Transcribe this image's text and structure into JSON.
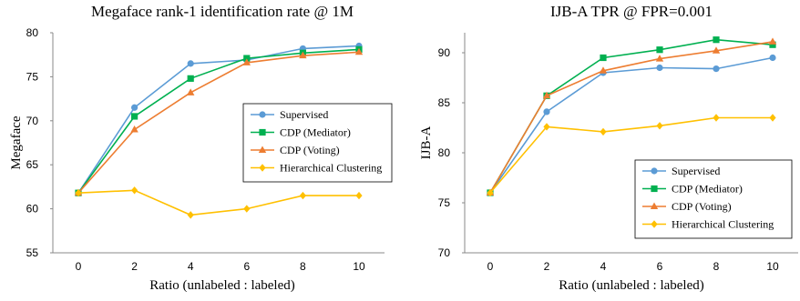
{
  "chart_data": [
    {
      "type": "line",
      "title": "Megaface rank-1 identification rate @ 1M",
      "xlabel": "Ratio (unlabeled : labeled)",
      "ylabel": "Megaface",
      "x": [
        0,
        2,
        4,
        6,
        8,
        10
      ],
      "xticks": [
        "0",
        "2",
        "4",
        "6",
        "8",
        "10"
      ],
      "yticks": [
        "55",
        "60",
        "65",
        "70",
        "75",
        "80"
      ],
      "ylim": [
        55,
        80
      ],
      "grid": false,
      "legend_position": "right-middle",
      "series": [
        {
          "name": "Supervised",
          "color": "#5B9BD5",
          "marker": "circle",
          "values": [
            61.8,
            71.5,
            76.5,
            76.9,
            78.2,
            78.5
          ]
        },
        {
          "name": "CDP (Mediator)",
          "color": "#00B050",
          "marker": "square",
          "values": [
            61.8,
            70.5,
            74.8,
            77.1,
            77.7,
            78.1
          ]
        },
        {
          "name": "CDP (Voting)",
          "color": "#ED7D31",
          "marker": "triangle",
          "values": [
            61.8,
            69.0,
            73.2,
            76.6,
            77.4,
            77.8
          ]
        },
        {
          "name": "Hierarchical Clustering",
          "color": "#FFC000",
          "marker": "diamond",
          "values": [
            61.8,
            62.1,
            59.3,
            60.0,
            61.5,
            61.5
          ]
        }
      ]
    },
    {
      "type": "line",
      "title": "IJB-A  TPR @ FPR=0.001",
      "xlabel": "Ratio (unlabeled : labeled)",
      "ylabel": "IJB-A",
      "x": [
        0,
        2,
        4,
        6,
        8,
        10
      ],
      "xticks": [
        "0",
        "2",
        "4",
        "6",
        "8",
        "10"
      ],
      "yticks": [
        "70",
        "75",
        "80",
        "85",
        "90"
      ],
      "ylim": [
        70,
        92
      ],
      "grid": false,
      "legend_position": "bottom-right",
      "series": [
        {
          "name": "Supervised",
          "color": "#5B9BD5",
          "marker": "circle",
          "values": [
            76.0,
            84.1,
            88.0,
            88.5,
            88.4,
            89.5
          ]
        },
        {
          "name": "CDP (Mediator)",
          "color": "#00B050",
          "marker": "square",
          "values": [
            76.0,
            85.7,
            89.5,
            90.3,
            91.3,
            90.8
          ]
        },
        {
          "name": "CDP (Voting)",
          "color": "#ED7D31",
          "marker": "triangle",
          "values": [
            76.0,
            85.7,
            88.2,
            89.4,
            90.2,
            91.1
          ]
        },
        {
          "name": "Hierarchical Clustering",
          "color": "#FFC000",
          "marker": "diamond",
          "values": [
            76.0,
            82.6,
            82.1,
            82.7,
            83.5,
            83.5
          ]
        }
      ]
    }
  ]
}
